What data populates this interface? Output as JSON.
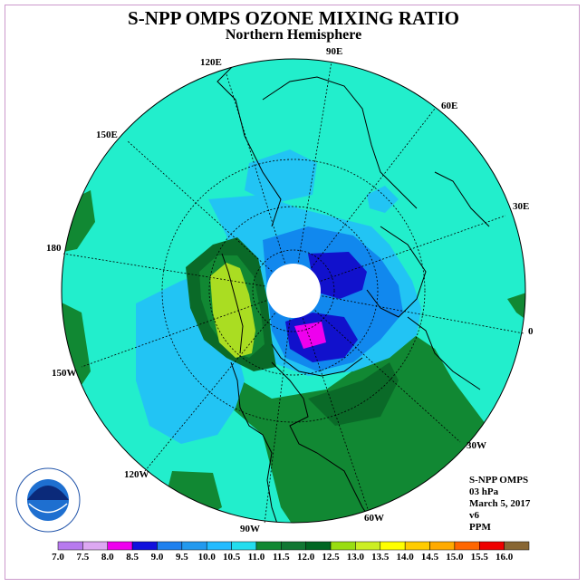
{
  "header": {
    "title": "S-NPP OMPS OZONE MIXING RATIO",
    "subtitle": "Northern Hemisphere"
  },
  "map": {
    "projection": "north-polar-stereographic",
    "longitude_labels": [
      "90E",
      "60E",
      "30E",
      "0",
      "30W",
      "60W",
      "90W",
      "120W",
      "150W",
      "180",
      "150E",
      "120E"
    ],
    "polar_gap_color": "#ffffff"
  },
  "info": {
    "instrument": "S-NPP OMPS",
    "level": "03 hPa",
    "date": "March 5, 2017",
    "version": "v6",
    "units": "PPM"
  },
  "colorbar": {
    "ticks": [
      "7.0",
      "7.5",
      "8.0",
      "8.5",
      "9.0",
      "9.5",
      "10.0",
      "10.5",
      "11.0",
      "11.5",
      "12.0",
      "12.5",
      "13.0",
      "13.5",
      "14.0",
      "14.5",
      "15.0",
      "15.5",
      "16.0"
    ],
    "colors": [
      "#b77aee",
      "#dda8f2",
      "#ee00ee",
      "#1111dd",
      "#1e80ee",
      "#2299ee",
      "#22bbff",
      "#22ddee",
      "#118833",
      "#117733",
      "#006622",
      "#99dd11",
      "#ccee22",
      "#ffff00",
      "#ffcc00",
      "#ffaa00",
      "#ff6600",
      "#ee0000",
      "#886633"
    ]
  },
  "logo": {
    "text": "NOAA",
    "ring_text": "NATIONAL OCEANIC AND ATMOSPHERIC ADMINISTRATION - U.S. DEPARTMENT OF COMMERCE"
  },
  "colors": {
    "base_field": "#22eecc",
    "light_blue": "#22c4f4",
    "blue": "#1188ee",
    "dark_blue": "#1111cc",
    "magenta": "#ee00ee",
    "green": "#118833",
    "dark_green": "#0a6a28",
    "yellow_green": "#aadd22"
  }
}
